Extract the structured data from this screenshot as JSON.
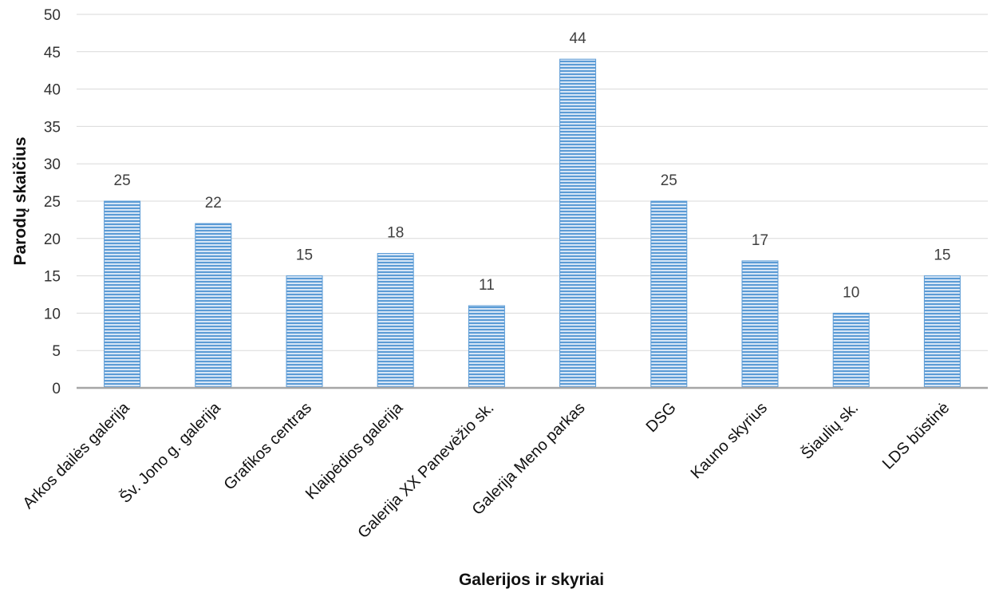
{
  "chart_data": {
    "type": "bar",
    "title": "",
    "xlabel": "Galerijos ir skyriai",
    "ylabel": "Parodų skaičius",
    "ylim": [
      0,
      50
    ],
    "yticks": [
      0,
      5,
      10,
      15,
      20,
      25,
      30,
      35,
      40,
      45,
      50
    ],
    "grid": true,
    "legend": "none",
    "bar_color": "#5b9bd5",
    "bar_pattern": "horizontal-stripes",
    "categories": [
      "Arkos dailės galerija",
      "Šv. Jono g. galerija",
      "Grafikos centras",
      "Klaipėdios galerija",
      "Galerija XX Panevėžio sk.",
      "Galerija Meno parkas",
      "DSG",
      "Kauno skyrius",
      "Šiaulių sk.",
      "LDS būstinė"
    ],
    "values": [
      25,
      22,
      15,
      18,
      11,
      44,
      25,
      17,
      10,
      15
    ]
  }
}
